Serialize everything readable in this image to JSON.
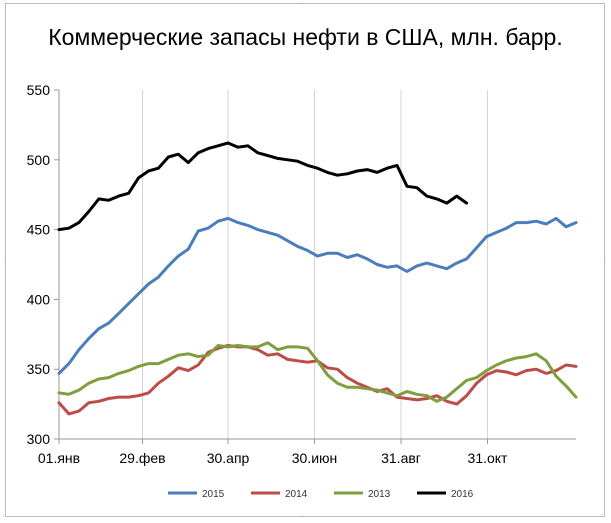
{
  "chart_data": {
    "type": "line",
    "title": "Коммерческие запасы нефти в США, млн. барр.",
    "xlabel": "",
    "ylabel": "",
    "ylim": [
      300,
      550
    ],
    "yticks": [
      300,
      350,
      400,
      450,
      500,
      550
    ],
    "x_points": 53,
    "xticks": [
      {
        "index": 0,
        "label": "01.янв"
      },
      {
        "index": 8.4,
        "label": "29.фев"
      },
      {
        "index": 17,
        "label": "30.апр"
      },
      {
        "index": 25.7,
        "label": "30.июн"
      },
      {
        "index": 34.4,
        "label": "31.авг"
      },
      {
        "index": 43.1,
        "label": "31.окт"
      }
    ],
    "grid": {
      "vertical": true,
      "horizontal": false
    },
    "legend_position": "bottom",
    "series": [
      {
        "name": "2015",
        "color": "#4a7ebb",
        "values": [
          347,
          354,
          364,
          372,
          379,
          383,
          390,
          397,
          404,
          411,
          416,
          424,
          431,
          436,
          449,
          451,
          456,
          458,
          455,
          453,
          450,
          448,
          446,
          442,
          438,
          435,
          431,
          433,
          433,
          430,
          432,
          429,
          425,
          423,
          424,
          420,
          424,
          426,
          424,
          422,
          426,
          429,
          437,
          445,
          448,
          451,
          455,
          455,
          456,
          454,
          458,
          452,
          455
        ]
      },
      {
        "name": "2014",
        "color": "#be4b48",
        "values": [
          326,
          318,
          320,
          326,
          327,
          329,
          330,
          330,
          331,
          333,
          340,
          345,
          351,
          349,
          353,
          362,
          365,
          367,
          366,
          366,
          364,
          360,
          361,
          357,
          356,
          355,
          356,
          351,
          350,
          344,
          340,
          337,
          334,
          336,
          330,
          329,
          328,
          329,
          331,
          327,
          325,
          331,
          340,
          346,
          349,
          348,
          346,
          349,
          350,
          347,
          349,
          353,
          352
        ]
      },
      {
        "name": "2013",
        "color": "#7f9e3e",
        "values": [
          333,
          332,
          335,
          340,
          343,
          344,
          347,
          349,
          352,
          354,
          354,
          357,
          360,
          361,
          359,
          360,
          367,
          366,
          367,
          366,
          366,
          369,
          364,
          366,
          366,
          365,
          356,
          346,
          340,
          337,
          337,
          336,
          335,
          333,
          331,
          334,
          332,
          331,
          327,
          330,
          336,
          342,
          344,
          349,
          353,
          356,
          358,
          359,
          361,
          356,
          345,
          338,
          330
        ]
      },
      {
        "name": "2016",
        "color": "#000000",
        "values": [
          450,
          451,
          455,
          463,
          472,
          471,
          474,
          476,
          487,
          492,
          494,
          502,
          504,
          498,
          505,
          508,
          510,
          512,
          509,
          510,
          505,
          503,
          501,
          500,
          499,
          496,
          494,
          491,
          489,
          490,
          492,
          493,
          491,
          494,
          496,
          481,
          480,
          474,
          472,
          469,
          474,
          469
        ]
      }
    ],
    "legend_order": [
      "2015",
      "2014",
      "2013",
      "2016"
    ]
  }
}
